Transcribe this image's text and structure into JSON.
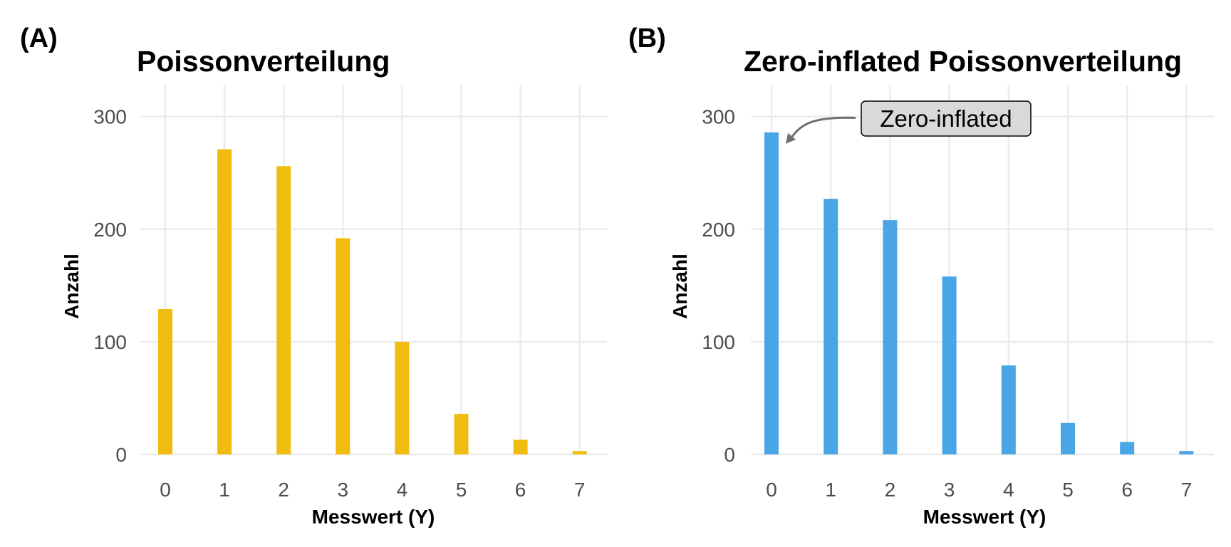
{
  "chart_data": [
    {
      "type": "bar",
      "panel_tag": "(A)",
      "title": "Poissonverteilung",
      "xlabel": "Messwert (Y)",
      "ylabel": "Anzahl",
      "categories": [
        "0",
        "1",
        "2",
        "3",
        "4",
        "5",
        "6",
        "7"
      ],
      "x": [
        0,
        1,
        2,
        3,
        4,
        5,
        6,
        7
      ],
      "values": [
        129,
        271,
        256,
        192,
        100,
        36,
        13,
        3
      ],
      "ylim": [
        0,
        300
      ],
      "yticks": [
        0,
        100,
        200,
        300
      ],
      "bar_color": "#F0BC10",
      "grid": true
    },
    {
      "type": "bar",
      "panel_tag": "(B)",
      "title": "Zero-inflated Poissonverteilung",
      "xlabel": "Messwert (Y)",
      "ylabel": "Anzahl",
      "categories": [
        "0",
        "1",
        "2",
        "3",
        "4",
        "5",
        "6",
        "7"
      ],
      "x": [
        0,
        1,
        2,
        3,
        4,
        5,
        6,
        7
      ],
      "values": [
        286,
        227,
        208,
        158,
        79,
        28,
        11,
        3
      ],
      "ylim": [
        0,
        300
      ],
      "yticks": [
        0,
        100,
        200,
        300
      ],
      "bar_color": "#4AA5E4",
      "grid": true,
      "annotation": {
        "text": "Zero-inflated",
        "target_x": 0,
        "target_y": 286,
        "box_fill": "#D9D9D9",
        "arrow_color": "#707070"
      }
    }
  ]
}
